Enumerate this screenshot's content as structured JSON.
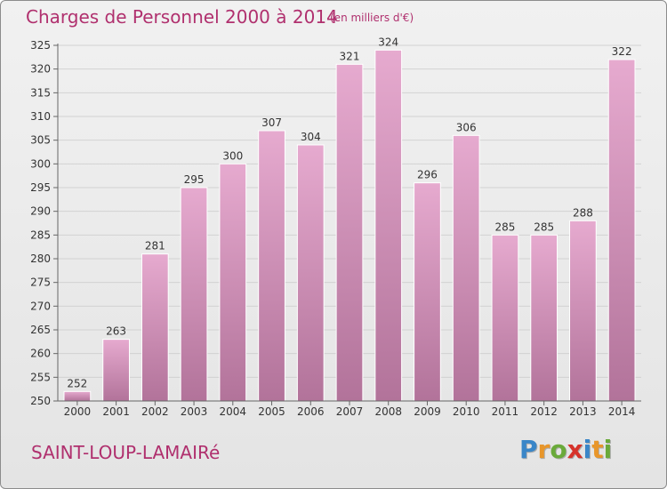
{
  "title": "Charges de Personnel 2000 à 2014",
  "subtitle": "(en milliers d'€)",
  "commune": "SAINT-LOUP-LAMAIRé",
  "logo": {
    "letters": [
      "P",
      "r",
      "o",
      "x",
      "i",
      "t",
      "i"
    ],
    "colors": [
      "#3a86c8",
      "#e8962a",
      "#6aaa3a",
      "#d6332b",
      "#3a86c8",
      "#e8962a",
      "#6aaa3a"
    ]
  },
  "colors": {
    "bar_top": "#e6aacf",
    "bar_bottom": "#b2739a",
    "title": "#b0306e"
  },
  "chart_data": {
    "type": "bar",
    "categories": [
      "2000",
      "2001",
      "2002",
      "2003",
      "2004",
      "2005",
      "2006",
      "2007",
      "2008",
      "2009",
      "2010",
      "2011",
      "2012",
      "2013",
      "2014"
    ],
    "values": [
      252,
      263,
      281,
      295,
      300,
      307,
      304,
      321,
      324,
      296,
      306,
      285,
      285,
      288,
      322
    ],
    "ylim": [
      250,
      325
    ],
    "yticks": [
      250,
      255,
      260,
      265,
      270,
      275,
      280,
      285,
      290,
      295,
      300,
      305,
      310,
      315,
      320,
      325
    ],
    "grid": true
  }
}
